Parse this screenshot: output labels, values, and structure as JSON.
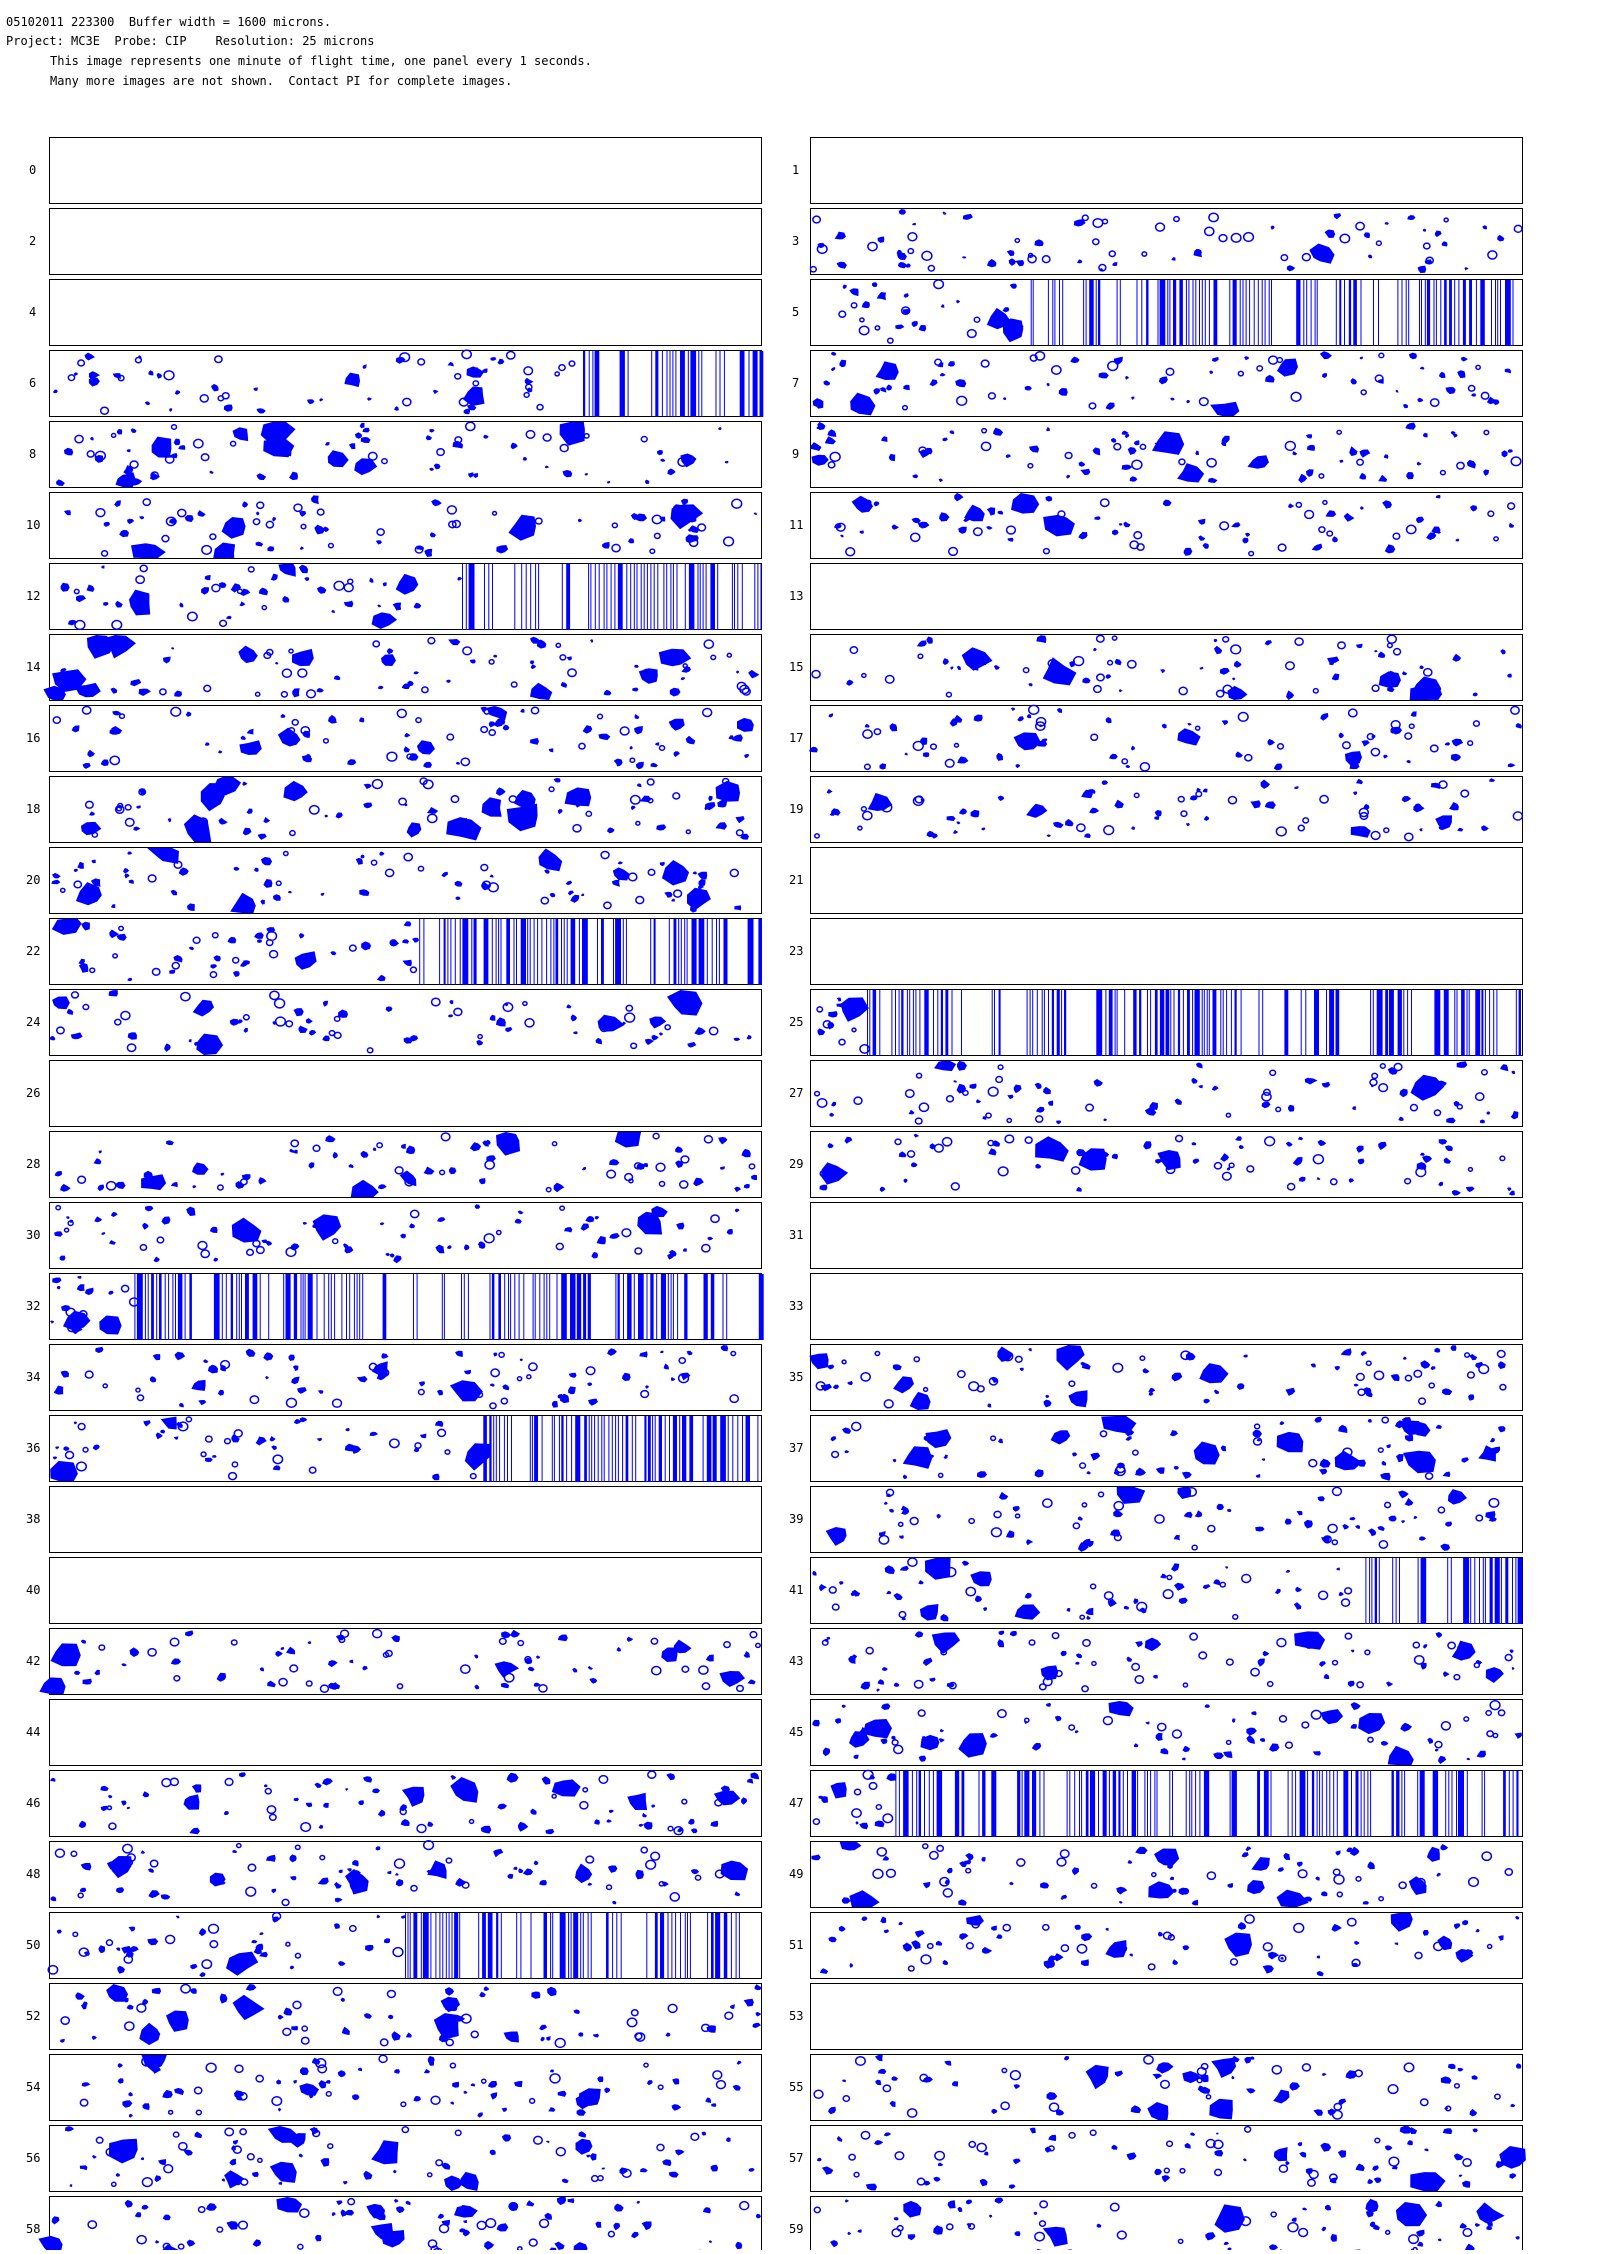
{
  "header": {
    "lines": [
      "05102011 223300  Buffer width = 1600 microns.",
      "Project: MC3E  Probe: CIP    Resolution: 25 microns",
      "This image represents one minute of flight time, one panel every 1 seconds.",
      "Many more images are not shown.  Contact PI for complete images."
    ]
  },
  "panels": [
    "0",
    "1",
    "2",
    "3",
    "4",
    "5",
    "6",
    "7",
    "8",
    "9",
    "10",
    "11",
    "12",
    "13",
    "14",
    "15",
    "16",
    "17",
    "18",
    "19",
    "20",
    "21",
    "22",
    "23",
    "24",
    "25",
    "26",
    "27",
    "28",
    "29",
    "30",
    "31",
    "32",
    "33",
    "34",
    "35",
    "36",
    "37",
    "38",
    "39",
    "40",
    "41",
    "42",
    "43",
    "44",
    "45",
    "46",
    "47",
    "48",
    "49",
    "50",
    "51",
    "52",
    "53",
    "54",
    "55",
    "56",
    "57",
    "58",
    "59"
  ]
}
